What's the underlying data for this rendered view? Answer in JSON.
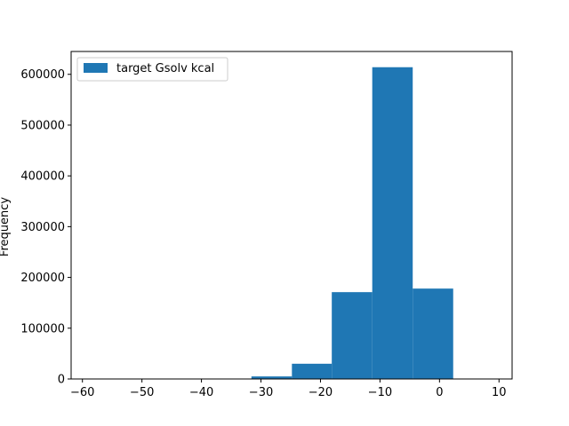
{
  "chart_data": {
    "type": "bar",
    "title": "",
    "xlabel": "",
    "ylabel": "Frequency",
    "bin_edges": [
      -58.7,
      -51.9,
      -45.2,
      -38.4,
      -31.6,
      -24.8,
      -18.1,
      -11.3,
      -4.5,
      2.3,
      9.0
    ],
    "values": [
      0,
      0,
      0,
      150,
      5000,
      30000,
      171000,
      614000,
      178000,
      0
    ],
    "series": [
      {
        "name": "target Gsolv kcal",
        "color": "#1f77b4"
      }
    ],
    "xlim": [
      -61.9,
      12.2
    ],
    "ylim": [
      0,
      645000
    ],
    "xticks": [
      -60,
      -50,
      -40,
      -30,
      -20,
      -10,
      0,
      10
    ],
    "xtick_labels": [
      "−60",
      "−50",
      "−40",
      "−30",
      "−20",
      "−10",
      "0",
      "10"
    ],
    "yticks": [
      0,
      100000,
      200000,
      300000,
      400000,
      500000,
      600000
    ],
    "ytick_labels": [
      "0",
      "100000",
      "200000",
      "300000",
      "400000",
      "500000",
      "600000"
    ],
    "legend_position": "upper-left",
    "grid": false
  }
}
